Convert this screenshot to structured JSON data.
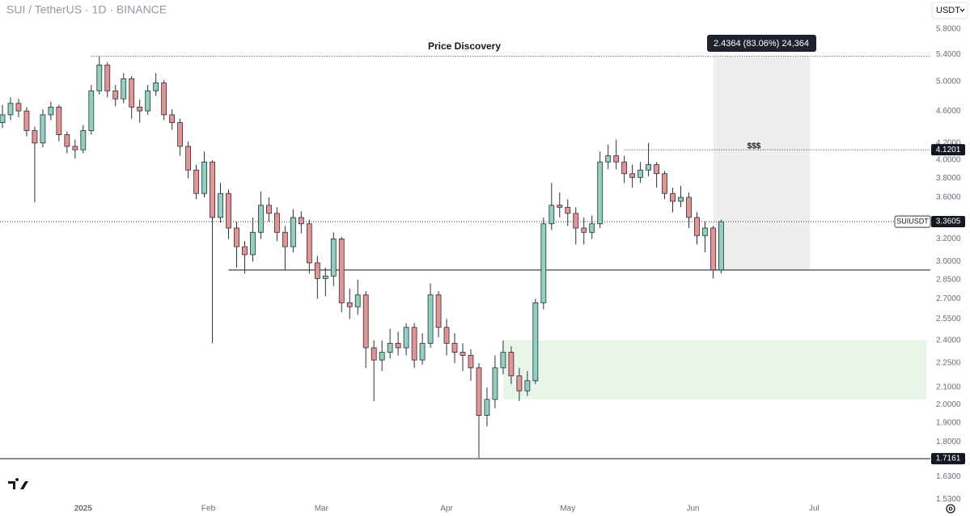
{
  "header": {
    "symbol": "SUI / TetherUS · 1D · BINANCE",
    "currency": "USDT"
  },
  "chart_data": {
    "type": "candlestick",
    "title": "Price Discovery",
    "log_scale": true,
    "colors": {
      "up": "#8fd1bf",
      "down": "#e89393",
      "outline": "#2a2e39"
    },
    "candles": {
      "x": [
        -20,
        -18,
        -16,
        -14,
        -12,
        -10,
        -8,
        -6,
        -4,
        -2,
        0,
        2,
        4,
        6,
        8,
        10,
        12,
        14,
        16,
        18,
        20,
        22,
        24,
        26,
        28,
        30,
        32,
        34,
        36,
        38,
        40,
        42,
        44,
        46,
        48,
        50,
        52,
        54,
        56,
        58,
        60,
        62,
        64,
        66,
        68,
        70,
        72,
        74,
        76,
        78,
        80,
        82,
        84,
        86,
        88,
        90,
        92,
        94,
        96,
        98,
        100,
        102,
        104,
        106,
        108,
        110,
        112,
        114,
        116,
        118,
        120,
        122,
        124,
        126,
        128,
        130,
        132,
        134,
        136,
        138,
        140,
        142,
        144,
        146,
        148,
        150,
        152,
        154,
        156,
        158
      ],
      "open": [
        4.45,
        4.55,
        4.7,
        4.6,
        4.35,
        4.2,
        4.55,
        4.65,
        4.3,
        4.16,
        4.12,
        4.35,
        4.87,
        5.24,
        4.87,
        4.76,
        5.04,
        4.65,
        4.6,
        4.87,
        4.98,
        4.55,
        4.45,
        4.16,
        3.89,
        3.64,
        3.98,
        3.4,
        3.64,
        3.3,
        3.13,
        3.06,
        3.26,
        3.52,
        3.44,
        3.26,
        3.13,
        3.4,
        3.34,
        2.99,
        2.86,
        2.88,
        3.2,
        2.67,
        2.64,
        2.73,
        2.35,
        2.27,
        2.32,
        2.38,
        2.35,
        2.49,
        2.27,
        2.38,
        2.73,
        2.49,
        2.38,
        2.32,
        2.3,
        2.22,
        1.94,
        2.03,
        2.22,
        2.32,
        2.17,
        2.08,
        2.14,
        2.67,
        3.34,
        3.52,
        3.5,
        3.44,
        3.3,
        3.26,
        3.34,
        3.98,
        4.05,
        3.98,
        3.85,
        3.81,
        3.89,
        3.95,
        3.85,
        3.64,
        3.56,
        3.6,
        3.4,
        3.23,
        3.3,
        2.93
      ],
      "high": [
        4.68,
        4.78,
        4.76,
        4.65,
        4.4,
        4.62,
        4.72,
        4.68,
        4.34,
        4.24,
        4.42,
        4.95,
        5.37,
        5.28,
        4.95,
        5.12,
        5.08,
        4.75,
        4.95,
        5.12,
        5.02,
        4.62,
        4.5,
        4.22,
        3.95,
        4.1,
        4.0,
        3.75,
        3.68,
        3.36,
        3.18,
        3.4,
        3.66,
        3.6,
        3.5,
        3.32,
        3.48,
        3.46,
        3.38,
        3.05,
        2.95,
        3.26,
        3.22,
        2.78,
        2.85,
        2.76,
        2.4,
        2.4,
        2.48,
        2.46,
        2.52,
        2.52,
        2.45,
        2.82,
        2.76,
        2.55,
        2.45,
        2.38,
        2.34,
        2.25,
        2.1,
        2.3,
        2.4,
        2.36,
        2.22,
        2.2,
        2.7,
        3.4,
        3.75,
        3.65,
        3.58,
        3.5,
        3.4,
        3.42,
        4.1,
        4.18,
        4.24,
        4.05,
        3.95,
        3.98,
        4.2,
        3.98,
        3.88,
        3.7,
        3.72,
        3.65,
        3.45,
        3.36,
        3.32,
        3.38
      ],
      "low": [
        4.38,
        4.48,
        4.52,
        4.28,
        3.55,
        4.15,
        4.48,
        4.22,
        4.08,
        4.02,
        4.08,
        4.3,
        4.82,
        4.78,
        4.66,
        4.7,
        4.5,
        4.45,
        4.55,
        4.8,
        4.48,
        4.36,
        4.05,
        3.8,
        3.58,
        3.6,
        2.38,
        3.35,
        3.2,
        2.95,
        2.9,
        3.0,
        3.2,
        3.36,
        3.18,
        2.93,
        3.08,
        3.25,
        2.9,
        2.7,
        2.72,
        2.8,
        2.6,
        2.55,
        2.58,
        2.22,
        2.02,
        2.2,
        2.28,
        2.3,
        2.3,
        2.22,
        2.24,
        2.35,
        2.42,
        2.3,
        2.25,
        2.2,
        2.14,
        1.72,
        1.88,
        1.98,
        2.18,
        2.12,
        2.02,
        2.05,
        2.12,
        2.62,
        3.28,
        3.4,
        3.32,
        3.15,
        3.15,
        3.2,
        3.3,
        3.9,
        3.9,
        3.75,
        3.7,
        3.75,
        3.82,
        3.7,
        3.58,
        3.45,
        3.5,
        3.3,
        3.15,
        3.08,
        2.86,
        2.9
      ],
      "close": [
        4.55,
        4.7,
        4.6,
        4.35,
        4.2,
        4.55,
        4.65,
        4.3,
        4.16,
        4.12,
        4.35,
        4.87,
        5.24,
        4.87,
        4.76,
        5.04,
        4.65,
        4.6,
        4.87,
        4.98,
        4.55,
        4.45,
        4.16,
        3.89,
        3.64,
        3.98,
        3.4,
        3.64,
        3.3,
        3.13,
        3.06,
        3.26,
        3.52,
        3.44,
        3.26,
        3.13,
        3.4,
        3.34,
        2.99,
        2.86,
        2.88,
        3.2,
        2.67,
        2.64,
        2.73,
        2.35,
        2.27,
        2.32,
        2.38,
        2.35,
        2.49,
        2.27,
        2.38,
        2.73,
        2.49,
        2.38,
        2.32,
        2.3,
        2.22,
        1.94,
        2.03,
        2.22,
        2.32,
        2.17,
        2.08,
        2.14,
        2.67,
        3.34,
        3.52,
        3.5,
        3.44,
        3.3,
        3.26,
        3.34,
        3.98,
        4.05,
        3.98,
        3.85,
        3.81,
        3.89,
        3.95,
        3.85,
        3.64,
        3.56,
        3.6,
        3.4,
        3.23,
        3.3,
        2.93,
        3.36
      ]
    },
    "xlim": [
      -20.6,
      208.8
    ],
    "ylim": [
      1.52,
      6.3
    ],
    "xticks": [
      {
        "value": 0,
        "label": "2025"
      },
      {
        "value": 31,
        "label": "Feb"
      },
      {
        "value": 59,
        "label": "Mar"
      },
      {
        "value": 90,
        "label": "Apr"
      },
      {
        "value": 120,
        "label": "May"
      },
      {
        "value": 151,
        "label": "Jun"
      },
      {
        "value": 181,
        "label": "Jul"
      }
    ],
    "yticks": [
      {
        "value": 5.8,
        "label": "5.8000"
      },
      {
        "value": 5.4,
        "label": "5.4000"
      },
      {
        "value": 5.0,
        "label": "5.0000"
      },
      {
        "value": 4.6,
        "label": "4.6000"
      },
      {
        "value": 4.2,
        "label": "4.2000"
      },
      {
        "value": 4.0,
        "label": "4.0000"
      },
      {
        "value": 3.8,
        "label": "3.8000"
      },
      {
        "value": 3.6,
        "label": "3.6000"
      },
      {
        "value": 3.2,
        "label": "3.2000"
      },
      {
        "value": 3.0,
        "label": "3.0000"
      },
      {
        "value": 2.85,
        "label": "2.8500"
      },
      {
        "value": 2.7,
        "label": "2.7000"
      },
      {
        "value": 2.55,
        "label": "2.5500"
      },
      {
        "value": 2.4,
        "label": "2.4000"
      },
      {
        "value": 2.25,
        "label": "2.2500"
      },
      {
        "value": 2.1,
        "label": "2.1000"
      },
      {
        "value": 2.0,
        "label": "2.0000"
      },
      {
        "value": 1.9,
        "label": "1.9000"
      },
      {
        "value": 1.8,
        "label": "1.8000"
      },
      {
        "value": 1.63,
        "label": "1.6300"
      },
      {
        "value": 1.53,
        "label": "1.5300"
      }
    ],
    "price_lines": [
      {
        "value": 5.37,
        "from": 2,
        "style": "dotted"
      },
      {
        "value": 4.1201,
        "from": 134,
        "style": "dotted"
      },
      {
        "value": 3.3605,
        "from": -20.6,
        "style": "dotted",
        "tag": "SUIUSDT"
      },
      {
        "value": 2.93,
        "from": 36,
        "style": "solid"
      },
      {
        "value": 1.7161,
        "from": -20.6,
        "style": "solid"
      }
    ],
    "zones": [
      {
        "x": [
          156,
          180
        ],
        "y": [
          2.93,
          5.37
        ],
        "color": "#eeeeee"
      },
      {
        "x": [
          104,
          208.8
        ],
        "y": [
          2.03,
          2.4
        ],
        "color": "#e8f5e9"
      }
    ],
    "annotations": {
      "target": "$$$",
      "measure": "2.4364 (83.06%) 24,364"
    }
  }
}
